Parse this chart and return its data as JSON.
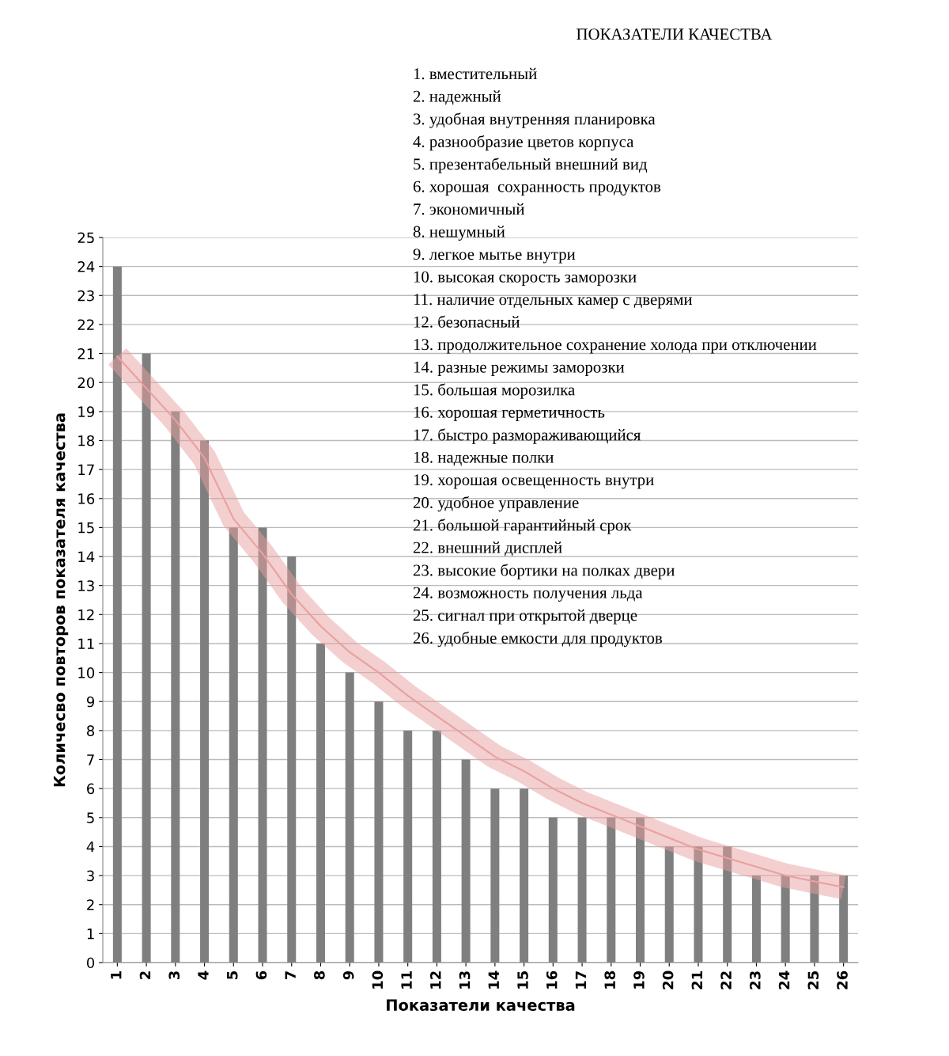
{
  "chart_data": [
    {
      "type": "bar",
      "xlabel": "Показатели качества",
      "ylabel": "Количесво повторов показателя качества",
      "categories": [
        "1",
        "2",
        "3",
        "4",
        "5",
        "6",
        "7",
        "8",
        "9",
        "10",
        "11",
        "12",
        "13",
        "14",
        "15",
        "16",
        "17",
        "18",
        "19",
        "20",
        "21",
        "22",
        "23",
        "24",
        "25",
        "26"
      ],
      "series": [
        {
          "type": "bar",
          "color": "#7f7f7f",
          "values": [
            24,
            21,
            19,
            18,
            15,
            15,
            14,
            11,
            10,
            9,
            8,
            8,
            7,
            6,
            6,
            5,
            5,
            5,
            5,
            4,
            4,
            4,
            3,
            3,
            3,
            3
          ]
        },
        {
          "type": "line",
          "color": "#e8a0a0",
          "values": [
            20.9,
            19.8,
            18.7,
            17.4,
            15.3,
            14.1,
            12.7,
            11.6,
            10.7,
            10.0,
            9.2,
            8.5,
            7.8,
            7.1,
            6.6,
            6.0,
            5.5,
            5.1,
            4.7,
            4.3,
            3.9,
            3.6,
            3.3,
            3.0,
            2.8,
            2.6
          ]
        }
      ],
      "ylim": [
        0,
        25
      ],
      "yticks": [
        0,
        1,
        2,
        3,
        4,
        5,
        6,
        7,
        8,
        9,
        10,
        11,
        12,
        13,
        14,
        15,
        16,
        17,
        18,
        19,
        20,
        21,
        22,
        23,
        24,
        25
      ],
      "grid": "y"
    },
    {
      "type": "other",
      "title": "ПОКАЗАТЕЛИ КАЧЕСТВА",
      "annotations": [
        "1. вместительный",
        "2. надежный",
        "3. удобная внутренняя планировка",
        "4. разнообразие цветов корпуса",
        "5. презентабельный внешний вид",
        "6. хорошая  сохранность продуктов",
        "7. экономичный",
        "8. нешумный",
        "9. легкое мытье внутри",
        "10. высокая скорость заморозки",
        "11. наличие отдельных камер с дверями",
        "12. безопасный",
        "13. продолжительное сохранение холода при отключении",
        "14. разные режимы заморозки",
        "15. большая морозилка",
        "16. хорошая герметичность",
        "17. быстро размораживающийся",
        "18. надежные полки",
        "19. хорошая освещенность внутри",
        "20. удобное управление",
        "21. большой гарантийный срок",
        "22. внешний дисплей",
        "23. высокие бортики на полках двери",
        "24. возможность получения льда",
        "25. сигнал при открытой дверце",
        "26. удобные емкости для продуктов"
      ]
    }
  ]
}
